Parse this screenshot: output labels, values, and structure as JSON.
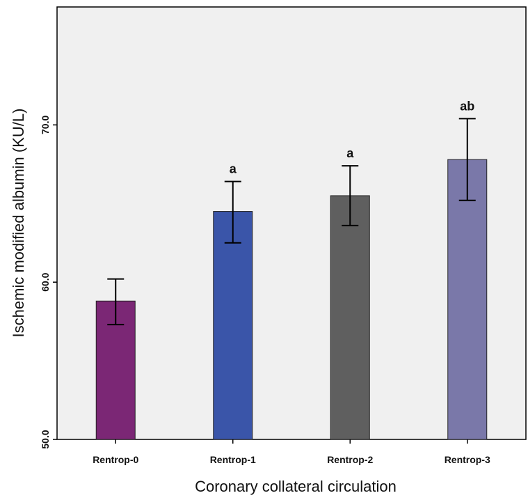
{
  "chart_data": {
    "type": "bar",
    "xlabel": "Coronary collateral circulation",
    "ylabel": "Ischemic modified albumin (KU/L)",
    "ylim": [
      50,
      77.5
    ],
    "yticks": [
      "50.0",
      "60.0",
      "70.0"
    ],
    "grid": false,
    "categories": [
      "Rentrop-0",
      "Rentrop-1",
      "Rentrop-2",
      "Rentrop-3"
    ],
    "values": [
      58.8,
      64.5,
      65.5,
      67.8
    ],
    "error_low": [
      57.3,
      62.5,
      63.6,
      65.2
    ],
    "error_high": [
      60.2,
      66.4,
      67.4,
      70.4
    ],
    "annotations": [
      "",
      "a",
      "a",
      "ab"
    ],
    "colors": [
      "#7b2775",
      "#3a55a9",
      "#5f5f5f",
      "#7a78a9"
    ],
    "plot_background": "#f0f0f0"
  }
}
